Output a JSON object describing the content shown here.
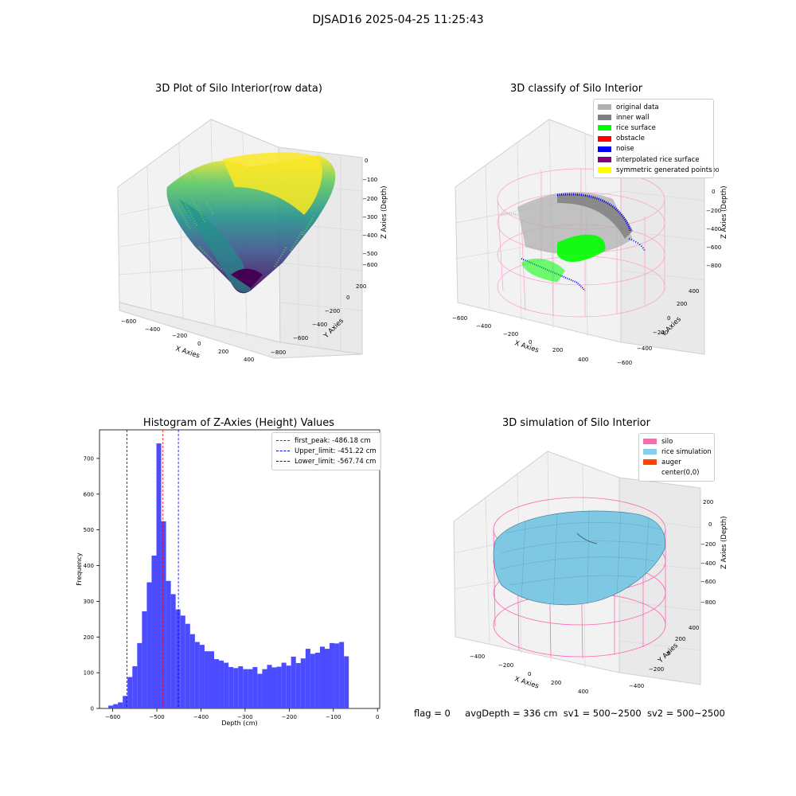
{
  "suptitle": "DJSAD16 2025-04-25 11:25:43",
  "colors": {
    "grid": "#dcdcdc",
    "pane": "#f2f2f2",
    "pane_side": "#e9e9e9",
    "viridis": [
      "#440154",
      "#3b528b",
      "#21918c",
      "#5ec962",
      "#fde725"
    ],
    "silo_wire": "#ff69b4",
    "rice": "#7ec8e3",
    "hist_bar": "#4b4bff"
  },
  "panels": {
    "raw": {
      "title": "3D Plot of Silo Interior(row data)",
      "xlabel": "X Axies",
      "ylabel": "Y Axies",
      "zlabel": "Z Axies (Depth)",
      "xticks": [
        "−600",
        "−400",
        "−200",
        "0",
        "200",
        "400"
      ],
      "yticks": [
        "−800",
        "−600",
        "−400",
        "−200",
        "0",
        "200"
      ],
      "zticks": [
        "0",
        "−100",
        "−200",
        "−300",
        "−400",
        "−500",
        "−600"
      ],
      "colormap": "viridis"
    },
    "classify": {
      "title": "3D classify of Silo Interior",
      "xlabel": "X Axies",
      "ylabel": "Y Axies",
      "zlabel": "Z Axies (Depth)",
      "xticks": [
        "−600",
        "−400",
        "−200",
        "0",
        "200",
        "400"
      ],
      "yticks": [
        "−600",
        "−400",
        "−200",
        "0",
        "200",
        "400"
      ],
      "zticks": [
        "0",
        "−200",
        "−400",
        "−600",
        "−800"
      ],
      "legend": [
        {
          "label": "original data",
          "color": "#b0b0b0"
        },
        {
          "label": "inner wall",
          "color": "#808080"
        },
        {
          "label": "rice surface",
          "color": "#00ff00"
        },
        {
          "label": "obstacle",
          "color": "#ff0000"
        },
        {
          "label": "noise",
          "color": "#0000ff"
        },
        {
          "label": "interpolated rice surface",
          "color": "#800080"
        },
        {
          "label": "symmetric generated points",
          "color": "#ffff00"
        }
      ],
      "top_right_tick": "200"
    },
    "histogram": {
      "title": "Histogram of Z-Axies (Height) Values",
      "legend": [
        {
          "label": "first_peak: -486.18 cm",
          "color": "#ff0000"
        },
        {
          "label": "Upper_limit: -451.22 cm",
          "color": "#0000ff"
        },
        {
          "label": "Lower_limit: -567.74 cm",
          "color": "#0000ff"
        }
      ]
    },
    "simulation": {
      "title": "3D simulation of Silo Interior",
      "xlabel": "X Axies",
      "ylabel": "Y Axies",
      "zlabel": "Z Axies (Depth)",
      "xticks": [
        "−400",
        "−200",
        "0",
        "200",
        "400"
      ],
      "yticks": [
        "−400",
        "−200",
        "0",
        "200",
        "400"
      ],
      "zticks": [
        "200",
        "0",
        "−200",
        "−400",
        "−600",
        "−800"
      ],
      "legend": [
        {
          "label": "silo",
          "color": "#ff69b4"
        },
        {
          "label": "rice simulation",
          "color": "#87ceeb"
        },
        {
          "label": "auger",
          "color": "#ff4500"
        },
        {
          "label": "center(0,0)",
          "color": "#ffffff"
        }
      ]
    }
  },
  "status": {
    "flag": "flag = 0",
    "avg_depth": "avgDepth = 336 cm",
    "sv1": "sv1 = 500~2500",
    "sv2": "sv2 = 500~2500"
  },
  "chart_data": [
    {
      "type": "scatter",
      "title": "3D Plot of Silo Interior(row data)",
      "xlabel": "X Axies",
      "ylabel": "Y Axies",
      "zlabel": "Z Axies (Depth)",
      "xlim": [
        -650,
        500
      ],
      "ylim": [
        -900,
        300
      ],
      "zlim": [
        -650,
        0
      ],
      "colormap": "viridis"
    },
    {
      "type": "scatter",
      "title": "3D classify of Silo Interior",
      "xlabel": "X Axies",
      "ylabel": "Y Axies",
      "zlabel": "Z Axies (Depth)",
      "xlim": [
        -650,
        500
      ],
      "ylim": [
        -650,
        450
      ],
      "zlim": [
        -850,
        100
      ],
      "series": [
        {
          "name": "original data"
        },
        {
          "name": "inner wall"
        },
        {
          "name": "rice surface"
        },
        {
          "name": "obstacle"
        },
        {
          "name": "noise"
        },
        {
          "name": "interpolated rice surface"
        },
        {
          "name": "symmetric generated points"
        }
      ],
      "legend_position": "upper right"
    },
    {
      "type": "bar",
      "title": "Histogram of Z-Axies (Height) Values",
      "xlabel": "Depth (cm)",
      "ylabel": "Frequency",
      "xlim": [
        -630,
        5
      ],
      "ylim": [
        0,
        780
      ],
      "xticks": [
        -600,
        -500,
        -400,
        -300,
        -200,
        -100,
        0
      ],
      "yticks": [
        0,
        100,
        200,
        300,
        400,
        500,
        600,
        700
      ],
      "bin_start": -610,
      "bin_width": 10.9,
      "values": [
        8,
        12,
        17,
        35,
        88,
        118,
        183,
        272,
        353,
        428,
        742,
        524,
        357,
        320,
        277,
        260,
        237,
        208,
        186,
        178,
        160,
        160,
        138,
        134,
        128,
        116,
        113,
        118,
        110,
        110,
        116,
        97,
        110,
        122,
        115,
        117,
        128,
        120,
        145,
        127,
        140,
        167,
        153,
        156,
        173,
        167,
        183,
        182,
        186,
        146
      ],
      "vlines": [
        {
          "name": "first_peak: -486.18 cm",
          "x": -486.18,
          "color": "#ff0000"
        },
        {
          "name": "Upper_limit: -451.22 cm",
          "x": -451.22,
          "color": "#0000ff"
        },
        {
          "name": "Lower_limit: -567.74 cm",
          "x": -567.74,
          "color": "#0000ff"
        }
      ],
      "legend_position": "upper right"
    },
    {
      "type": "surface",
      "title": "3D simulation of Silo Interior",
      "xlabel": "X Axies",
      "ylabel": "Y Axies",
      "zlabel": "Z Axies (Depth)",
      "xlim": [
        -500,
        500
      ],
      "ylim": [
        -500,
        500
      ],
      "zlim": [
        -850,
        300
      ],
      "series": [
        {
          "name": "silo"
        },
        {
          "name": "rice simulation"
        },
        {
          "name": "auger"
        },
        {
          "name": "center(0,0)"
        }
      ],
      "legend_position": "upper right"
    }
  ]
}
